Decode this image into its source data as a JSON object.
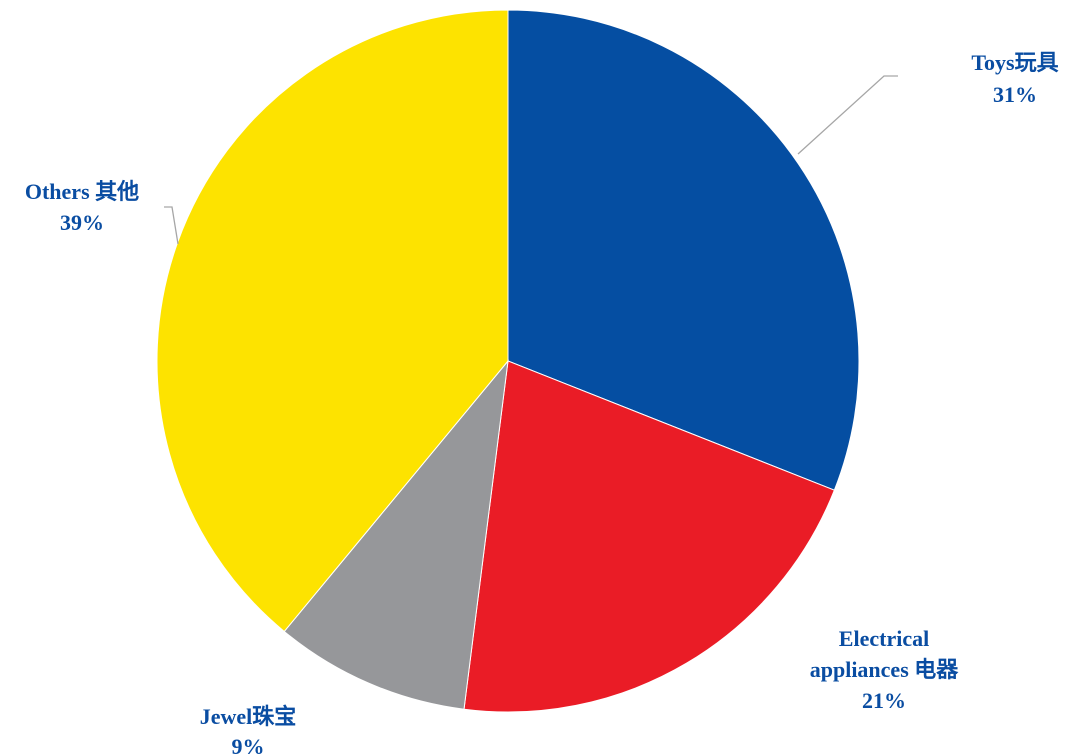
{
  "chart_data": {
    "type": "pie",
    "title": "",
    "colors": {
      "Toys": "#054ea2",
      "Electrical appliances": "#ea1c26",
      "Jewel": "#96979a",
      "Others": "#fde300",
      "label_text": "#0a4da2",
      "leader_line": "#a6a6a6"
    },
    "slices": [
      {
        "key": "Toys",
        "label_lines": [
          "Toys玩具"
        ],
        "value_text": "31%",
        "value": 31
      },
      {
        "key": "Electrical appliances",
        "label_lines": [
          "Electrical",
          "appliances 电器"
        ],
        "value_text": "21%",
        "value": 21
      },
      {
        "key": "Jewel",
        "label_lines": [
          "Jewel珠宝"
        ],
        "value_text": "9%",
        "value": 9
      },
      {
        "key": "Others",
        "label_lines": [
          "Others 其他"
        ],
        "value_text": "39%",
        "value": 39
      }
    ],
    "start_angle": "12 o'clock",
    "direction": "clockwise"
  }
}
